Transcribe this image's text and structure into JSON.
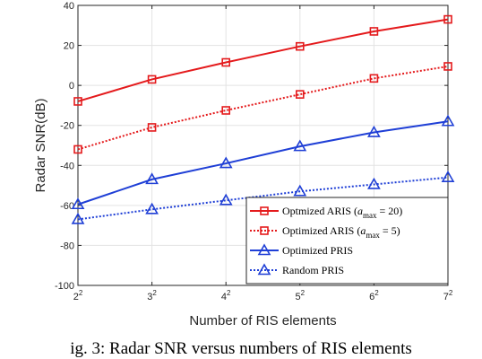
{
  "chart_data": {
    "type": "line",
    "title": "",
    "xlabel": "Number of RIS elements",
    "ylabel": "Radar SNR(dB)",
    "x": [
      4,
      9,
      16,
      25,
      36,
      49
    ],
    "xtick_labels": [
      {
        "base": "2",
        "exp": "2"
      },
      {
        "base": "3",
        "exp": "2"
      },
      {
        "base": "4",
        "exp": "2"
      },
      {
        "base": "5",
        "exp": "2"
      },
      {
        "base": "6",
        "exp": "2"
      },
      {
        "base": "7",
        "exp": "2"
      }
    ],
    "xlim": [
      4,
      49
    ],
    "ylim": [
      -100,
      40
    ],
    "yticks": [
      -100,
      -80,
      -60,
      -40,
      -20,
      0,
      20,
      40
    ],
    "grid": true,
    "legend_position": "bottom-right",
    "series": [
      {
        "name": "Optmized ARIS (a_max = 20)",
        "legend_prefix": "Optmized ARIS (",
        "legend_var": "a",
        "legend_sub": "max",
        "legend_suffix": " = 20)",
        "color": "#e41a1c",
        "line": "solid",
        "marker": "square",
        "values": [
          -8,
          3,
          11.5,
          19.5,
          27,
          33
        ]
      },
      {
        "name": "Optimized ARIS (a_max = 5)",
        "legend_prefix": "Optimized ARIS (",
        "legend_var": "a",
        "legend_sub": "max",
        "legend_suffix": " = 5)",
        "color": "#e41a1c",
        "line": "dotted",
        "marker": "square",
        "values": [
          -32,
          -21,
          -12.5,
          -4.5,
          3.5,
          9.5
        ]
      },
      {
        "name": "Optimized PRIS",
        "legend_prefix": "Optimized PRIS",
        "legend_var": "",
        "legend_sub": "",
        "legend_suffix": "",
        "color": "#1f3fd6",
        "line": "solid",
        "marker": "triangle",
        "values": [
          -59.5,
          -47,
          -39,
          -30.5,
          -23.5,
          -18
        ]
      },
      {
        "name": "Random PRIS",
        "legend_prefix": "Random PRIS",
        "legend_var": "",
        "legend_sub": "",
        "legend_suffix": "",
        "color": "#1f3fd6",
        "line": "dotted",
        "marker": "triangle",
        "values": [
          -67,
          -62,
          -57.5,
          -53,
          -49.5,
          -46
        ]
      }
    ]
  },
  "caption": "ig. 3: Radar SNR versus numbers of RIS elements"
}
